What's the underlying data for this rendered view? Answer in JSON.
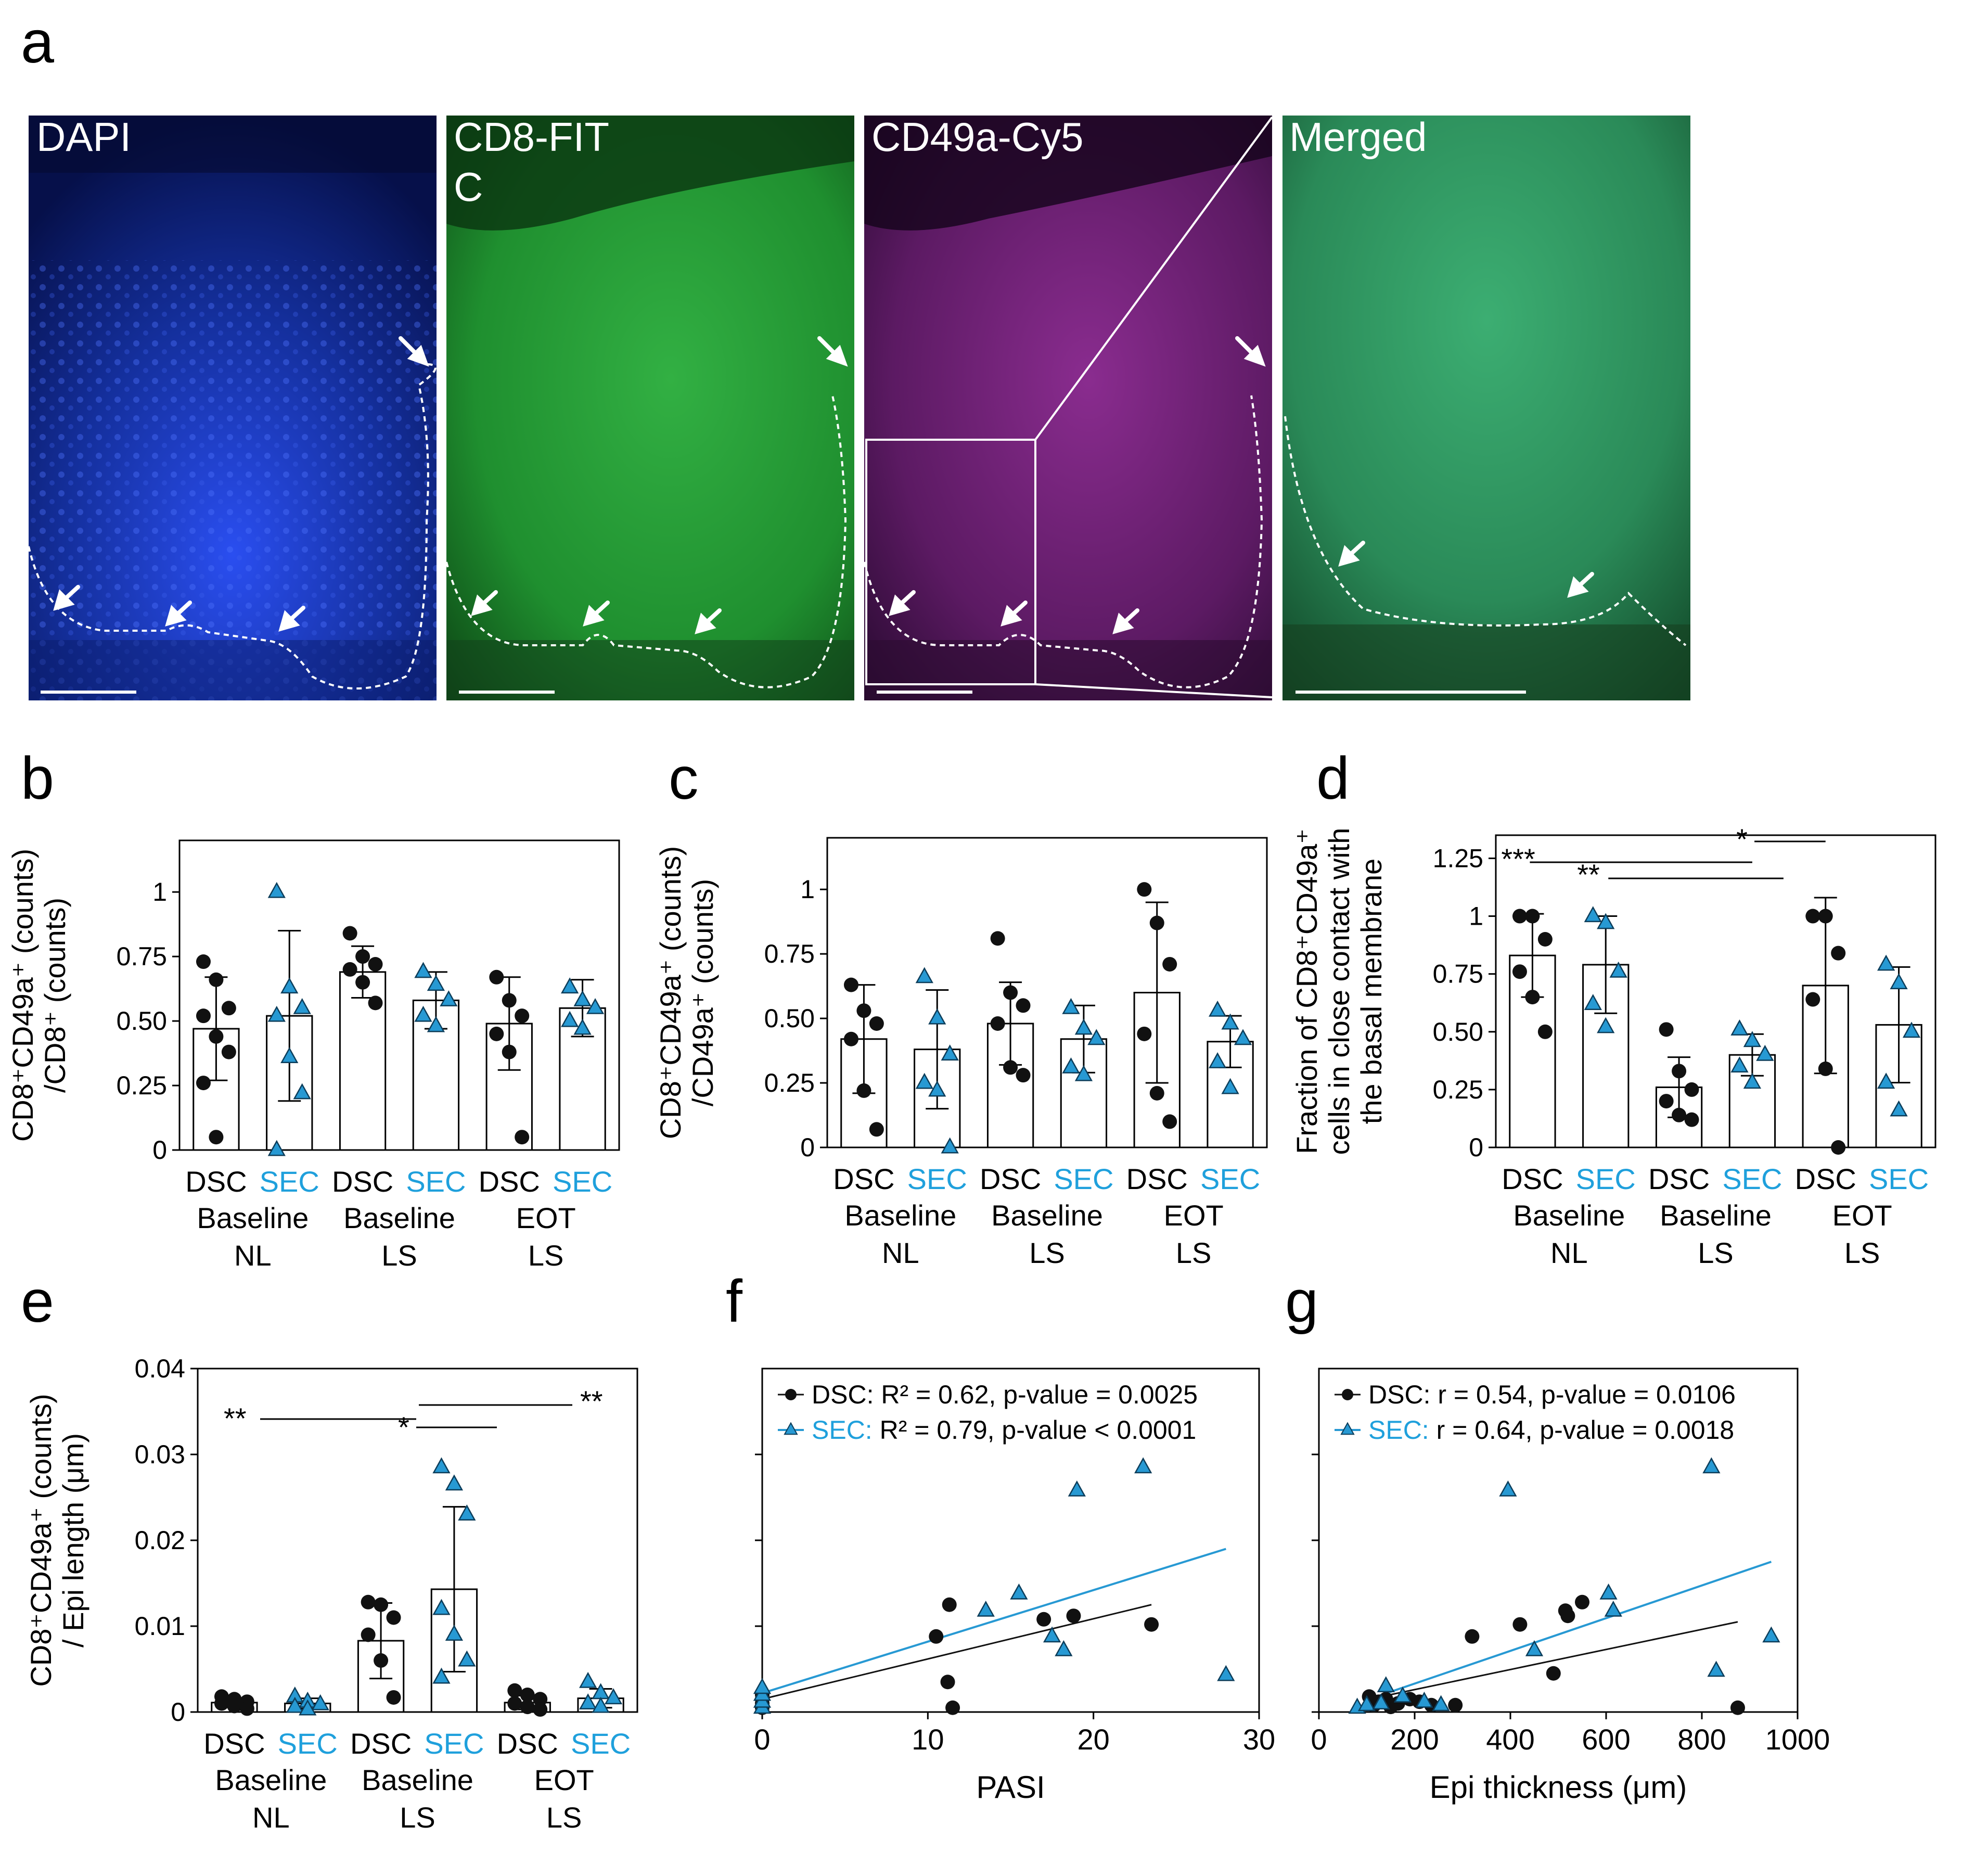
{
  "colors": {
    "dsc": "#111111",
    "sec": "#2799d3",
    "sec_text": "#1fa0dc"
  },
  "panel_a": {
    "letter": "a",
    "images": [
      {
        "label": "DAPI",
        "color": "#1432c8"
      },
      {
        "label": "CD8-FIT\nC",
        "color": "#27b83a"
      },
      {
        "label": "CD49a-Cy5",
        "color": "#a52ea5"
      },
      {
        "label": "Merged",
        "color": "#2fa864"
      }
    ]
  },
  "bar_groups": {
    "row1": [
      "DSC",
      "SEC",
      "DSC",
      "SEC",
      "DSC",
      "SEC"
    ],
    "row2": [
      "Baseline",
      "Baseline",
      "EOT"
    ],
    "row3": [
      "NL",
      "LS",
      "LS"
    ]
  },
  "chart_data": [
    {
      "panel": "b",
      "type": "bar",
      "ylabel_lines": [
        "CD8⁺CD49a⁺ (counts)",
        "/CD8⁺ (counts)"
      ],
      "yticks": [
        "0",
        "0.25",
        "0.50",
        "0.75",
        "1"
      ],
      "ylim": [
        0,
        1.2
      ],
      "categories": [
        "DSC Baseline NL",
        "SEC Baseline NL",
        "DSC Baseline LS",
        "SEC Baseline LS",
        "DSC EOT LS",
        "SEC EOT LS"
      ],
      "means": [
        0.47,
        0.52,
        0.69,
        0.58,
        0.49,
        0.55
      ],
      "sd": [
        0.2,
        0.33,
        0.1,
        0.11,
        0.18,
        0.11
      ],
      "points": [
        [
          0.73,
          0.66,
          0.55,
          0.52,
          0.44,
          0.38,
          0.26,
          0.05
        ],
        [
          1.0,
          0.63,
          0.55,
          0.52,
          0.36,
          0.22,
          0.0
        ],
        [
          0.84,
          0.75,
          0.72,
          0.7,
          0.65,
          0.57
        ],
        [
          0.69,
          0.64,
          0.58,
          0.52,
          0.48
        ],
        [
          0.67,
          0.58,
          0.52,
          0.45,
          0.38,
          0.05
        ],
        [
          0.63,
          0.58,
          0.55,
          0.5,
          0.47
        ]
      ],
      "significance": []
    },
    {
      "panel": "c",
      "type": "bar",
      "ylabel_lines": [
        "CD8⁺CD49a⁺ (counts)",
        "/CD49a⁺ (counts)"
      ],
      "yticks": [
        "0",
        "0.25",
        "0.50",
        "0.75",
        "1"
      ],
      "ylim": [
        0,
        1.2
      ],
      "categories": [
        "DSC Baseline NL",
        "SEC Baseline NL",
        "DSC Baseline LS",
        "SEC Baseline LS",
        "DSC EOT LS",
        "SEC EOT LS"
      ],
      "means": [
        0.42,
        0.38,
        0.48,
        0.42,
        0.6,
        0.41
      ],
      "sd": [
        0.21,
        0.23,
        0.16,
        0.13,
        0.35,
        0.1
      ],
      "points": [
        [
          0.63,
          0.53,
          0.48,
          0.42,
          0.22,
          0.07
        ],
        [
          0.66,
          0.5,
          0.36,
          0.25,
          0.22,
          0.0
        ],
        [
          0.81,
          0.6,
          0.55,
          0.48,
          0.31,
          0.28
        ],
        [
          0.54,
          0.46,
          0.42,
          0.31,
          0.28
        ],
        [
          1.0,
          0.87,
          0.71,
          0.44,
          0.21,
          0.1
        ],
        [
          0.53,
          0.48,
          0.42,
          0.33,
          0.23
        ]
      ],
      "significance": []
    },
    {
      "panel": "d",
      "type": "bar",
      "ylabel_lines": [
        "Fraction of CD8⁺CD49a⁺",
        "cells in close contact with",
        "the basal membrane"
      ],
      "yticks": [
        "0",
        "0.25",
        "0.50",
        "0.75",
        "1",
        "1.25"
      ],
      "ylim": [
        0,
        1.35
      ],
      "categories": [
        "DSC Baseline NL",
        "SEC Baseline NL",
        "DSC Baseline LS",
        "SEC Baseline LS",
        "DSC EOT LS",
        "SEC EOT LS"
      ],
      "means": [
        0.83,
        0.79,
        0.26,
        0.4,
        0.7,
        0.53
      ],
      "sd": [
        0.18,
        0.21,
        0.13,
        0.09,
        0.38,
        0.25
      ],
      "points": [
        [
          1.0,
          1.0,
          0.9,
          0.76,
          0.65,
          0.5
        ],
        [
          1.0,
          0.97,
          0.76,
          0.62,
          0.52
        ],
        [
          0.51,
          0.33,
          0.25,
          0.2,
          0.14,
          0.12
        ],
        [
          0.51,
          0.46,
          0.4,
          0.35,
          0.28
        ],
        [
          1.0,
          1.0,
          0.84,
          0.64,
          0.34,
          0.0
        ],
        [
          0.79,
          0.71,
          0.5,
          0.28,
          0.16
        ]
      ],
      "significance": [
        {
          "label": "***",
          "from": 0,
          "to": 3
        },
        {
          "label": "**",
          "from": 1,
          "to": 3
        },
        {
          "label": "*",
          "from": 2,
          "to": 4
        }
      ]
    },
    {
      "panel": "e",
      "type": "bar",
      "ylabel_lines": [
        "CD8⁺CD49a⁺ (counts)",
        "/ Epi length (μm)"
      ],
      "yticks": [
        "0",
        "0.01",
        "0.02",
        "0.03",
        "0.04"
      ],
      "ylim": [
        0,
        0.04
      ],
      "categories": [
        "DSC Baseline NL",
        "SEC Baseline NL",
        "DSC Baseline LS",
        "SEC Baseline LS",
        "DSC EOT LS",
        "SEC EOT LS"
      ],
      "means": [
        0.0011,
        0.001,
        0.0083,
        0.0143,
        0.0011,
        0.0016
      ],
      "sd": [
        0.0005,
        0.0006,
        0.0044,
        0.0096,
        0.0008,
        0.0011
      ],
      "points": [
        [
          0.0018,
          0.0015,
          0.0012,
          0.001,
          0.0007,
          0.0004
        ],
        [
          0.0018,
          0.0012,
          0.0009,
          0.0006,
          0.0003
        ],
        [
          0.0128,
          0.0125,
          0.011,
          0.009,
          0.006,
          0.0017
        ],
        [
          0.0285,
          0.0265,
          0.023,
          0.012,
          0.009,
          0.006,
          0.004
        ],
        [
          0.0025,
          0.002,
          0.0015,
          0.001,
          0.0006,
          0.0003
        ],
        [
          0.0035,
          0.0022,
          0.0016,
          0.001,
          0.0006
        ]
      ],
      "significance": [
        {
          "label": "**",
          "from": 0,
          "to": 2,
          "side": "left"
        },
        {
          "label": "**",
          "from": 2,
          "to": 4,
          "side": "right"
        },
        {
          "label": "*",
          "from": 1,
          "to": 3,
          "side": "left"
        }
      ]
    },
    {
      "panel": "f",
      "type": "scatter",
      "xlabel": "PASI",
      "xticks": [
        0,
        10,
        20,
        30
      ],
      "xlim": [
        0,
        30
      ],
      "ylim": [
        0,
        0.04
      ],
      "legend": [
        {
          "group": "DSC:",
          "text": "R² = 0.62, p-value = 0.0025"
        },
        {
          "group": "SEC:",
          "text": "R² = 0.79, p-value < 0.0001"
        }
      ],
      "dsc": [
        [
          0,
          0.0005
        ],
        [
          0,
          0.001
        ],
        [
          0,
          0.0015
        ],
        [
          0,
          0.002
        ],
        [
          10.5,
          0.0088
        ],
        [
          11.3,
          0.0125
        ],
        [
          11.2,
          0.0035
        ],
        [
          11.5,
          0.0005
        ],
        [
          17,
          0.0108
        ],
        [
          18.8,
          0.0112
        ],
        [
          23.5,
          0.0102
        ]
      ],
      "sec": [
        [
          0,
          0.0005
        ],
        [
          0,
          0.0012
        ],
        [
          0,
          0.002
        ],
        [
          0,
          0.0028
        ],
        [
          13.5,
          0.0118
        ],
        [
          15.5,
          0.0138
        ],
        [
          17.5,
          0.0088
        ],
        [
          18.2,
          0.0072
        ],
        [
          19,
          0.0258
        ],
        [
          23,
          0.0285
        ],
        [
          28,
          0.0043
        ]
      ],
      "dsc_fit": [
        [
          0,
          0.0015
        ],
        [
          23.5,
          0.0125
        ]
      ],
      "sec_fit": [
        [
          0,
          0.0022
        ],
        [
          28,
          0.019
        ]
      ]
    },
    {
      "panel": "g",
      "type": "scatter",
      "xlabel": "Epi thickness (μm)",
      "xticks": [
        0,
        200,
        400,
        600,
        800,
        1000
      ],
      "xlim": [
        0,
        1000
      ],
      "ylim": [
        0,
        0.04
      ],
      "legend": [
        {
          "group": "DSC:",
          "text": "r = 0.54, p-value = 0.0106"
        },
        {
          "group": "SEC:",
          "text": "r = 0.64, p-value = 0.0018"
        }
      ],
      "dsc": [
        [
          105,
          0.0018
        ],
        [
          115,
          0.0008
        ],
        [
          125,
          0.0012
        ],
        [
          140,
          0.0015
        ],
        [
          150,
          0.0006
        ],
        [
          165,
          0.001
        ],
        [
          190,
          0.0015
        ],
        [
          210,
          0.0012
        ],
        [
          235,
          0.0008
        ],
        [
          285,
          0.0008
        ],
        [
          320,
          0.0088
        ],
        [
          420,
          0.0102
        ],
        [
          490,
          0.0045
        ],
        [
          515,
          0.0118
        ],
        [
          520,
          0.0112
        ],
        [
          550,
          0.0128
        ],
        [
          875,
          0.0005
        ]
      ],
      "sec": [
        [
          80,
          0.0005
        ],
        [
          100,
          0.0008
        ],
        [
          130,
          0.001
        ],
        [
          140,
          0.003
        ],
        [
          175,
          0.0018
        ],
        [
          220,
          0.0012
        ],
        [
          255,
          0.0008
        ],
        [
          395,
          0.0258
        ],
        [
          450,
          0.0072
        ],
        [
          605,
          0.0138
        ],
        [
          615,
          0.0118
        ],
        [
          820,
          0.0285
        ],
        [
          830,
          0.0048
        ],
        [
          945,
          0.0088
        ]
      ],
      "dsc_fit": [
        [
          105,
          0.0015
        ],
        [
          875,
          0.0105
        ]
      ],
      "sec_fit": [
        [
          105,
          0.0015
        ],
        [
          945,
          0.0175
        ]
      ]
    }
  ]
}
